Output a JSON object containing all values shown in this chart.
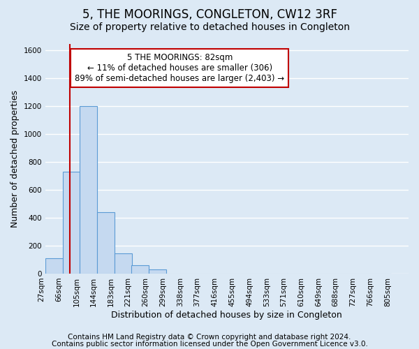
{
  "title": "5, THE MOORINGS, CONGLETON, CW12 3RF",
  "subtitle": "Size of property relative to detached houses in Congleton",
  "xlabel": "Distribution of detached houses by size in Congleton",
  "ylabel": "Number of detached properties",
  "footnote1": "Contains HM Land Registry data © Crown copyright and database right 2024.",
  "footnote2": "Contains public sector information licensed under the Open Government Licence v3.0.",
  "bin_labels": [
    "27sqm",
    "66sqm",
    "105sqm",
    "144sqm",
    "183sqm",
    "221sqm",
    "260sqm",
    "299sqm",
    "338sqm",
    "377sqm",
    "416sqm",
    "455sqm",
    "494sqm",
    "533sqm",
    "571sqm",
    "610sqm",
    "649sqm",
    "688sqm",
    "727sqm",
    "766sqm",
    "805sqm"
  ],
  "bin_edges": [
    27,
    66,
    105,
    144,
    183,
    221,
    260,
    299,
    338,
    377,
    416,
    455,
    494,
    533,
    571,
    610,
    649,
    688,
    727,
    766,
    805
  ],
  "bar_heights": [
    110,
    730,
    1200,
    440,
    145,
    60,
    30,
    0,
    0,
    0,
    0,
    0,
    0,
    0,
    0,
    0,
    0,
    0,
    0,
    0
  ],
  "bar_color": "#c5d9f0",
  "bar_edge_color": "#5b9bd5",
  "property_size": 82,
  "property_line_color": "#c00000",
  "annotation_text": "5 THE MOORINGS: 82sqm\n← 11% of detached houses are smaller (306)\n89% of semi-detached houses are larger (2,403) →",
  "annotation_box_color": "#ffffff",
  "annotation_box_edge_color": "#c00000",
  "ylim": [
    0,
    1650
  ],
  "yticks": [
    0,
    200,
    400,
    600,
    800,
    1000,
    1200,
    1400,
    1600
  ],
  "background_color": "#dce9f5",
  "plot_background_color": "#dce9f5",
  "grid_color": "#ffffff",
  "title_fontsize": 12,
  "subtitle_fontsize": 10,
  "label_fontsize": 9,
  "tick_fontsize": 7.5,
  "annotation_fontsize": 8.5,
  "footnote_fontsize": 7.5
}
